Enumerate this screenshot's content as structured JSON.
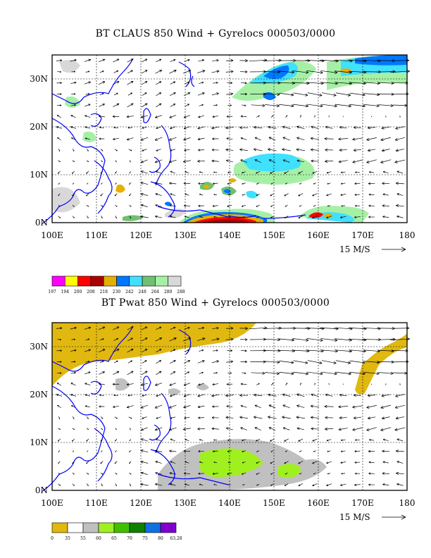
{
  "maps": [
    {
      "id": "claus",
      "title": "BT CLAUS 850 Wind + Gyrelocs 000503/0000",
      "legend_colors": [
        "#ff00ff",
        "#ffff00",
        "#ff0000",
        "#aa0000",
        "#e6b000",
        "#0077ff",
        "#40e0ff",
        "#70c070",
        "#a6f0a6",
        "#d8d8d8"
      ],
      "legend_labels": [
        "197",
        "194",
        "200",
        "208",
        "218",
        "230",
        "242",
        "248",
        "264",
        "280",
        "288"
      ]
    },
    {
      "id": "pwat",
      "title": "BT Pwat 850 Wind + Gyrelocs 000503/0000",
      "legend_colors": [
        "#e0b810",
        "#ffffff",
        "#c0c0c0",
        "#a0f020",
        "#40c000",
        "#108000",
        "#1070e0",
        "#8000d0"
      ],
      "legend_labels": [
        "0",
        "35",
        "55",
        "60",
        "65",
        "70",
        "75",
        "80",
        "63.28"
      ]
    }
  ],
  "axes": {
    "x_ticks": [
      "100E",
      "110E",
      "120E",
      "130E",
      "140E",
      "150E",
      "160E",
      "170E",
      "180"
    ],
    "y_ticks": [
      "0N",
      "10N",
      "20N",
      "30N"
    ],
    "ref_vector": "15 M/S"
  },
  "colors": {
    "coast": "#0000ff",
    "frame": "#000000"
  }
}
